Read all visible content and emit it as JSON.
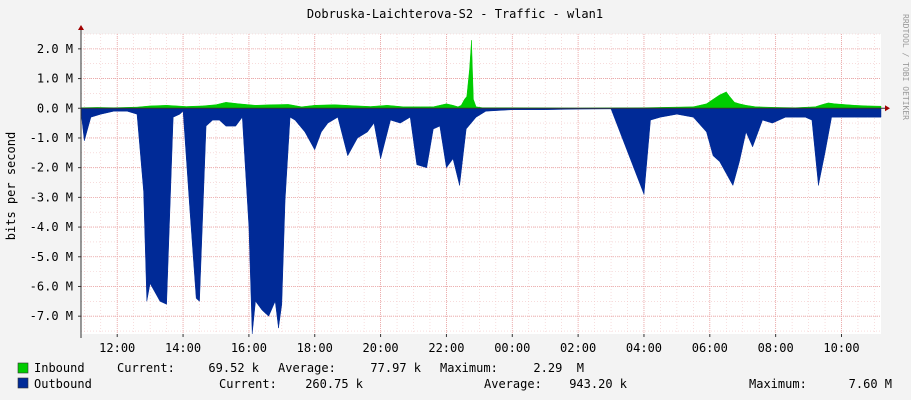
{
  "chart_data": {
    "type": "area",
    "title": "Dobruska-Laichterova-S2 - Traffic - wlan1",
    "ylabel": "bits per second",
    "xlabel": "",
    "watermark": "RRDTOOL / TOBI OETIKER",
    "ylim": [
      -7.6,
      2.5
    ],
    "y_unit": "M",
    "y_ticks": [
      {
        "v": 2,
        "label": "2.0 M"
      },
      {
        "v": 1,
        "label": "1.0 M"
      },
      {
        "v": 0,
        "label": "0.0 M"
      },
      {
        "v": -1,
        "label": "-1.0 M"
      },
      {
        "v": -2,
        "label": "-2.0 M"
      },
      {
        "v": -3,
        "label": "-3.0 M"
      },
      {
        "v": -4,
        "label": "-4.0 M"
      },
      {
        "v": -5,
        "label": "-5.0 M"
      },
      {
        "v": -6,
        "label": "-6.0 M"
      },
      {
        "v": -7,
        "label": "-7.0 M"
      }
    ],
    "x_ticks": [
      "12:00",
      "14:00",
      "16:00",
      "18:00",
      "20:00",
      "22:00",
      "00:00",
      "02:00",
      "04:00",
      "06:00",
      "08:00",
      "10:00"
    ],
    "x_tick_hours": [
      12,
      14,
      16,
      18,
      20,
      22,
      24,
      26,
      28,
      30,
      32,
      34
    ],
    "x_range_hours": [
      10.9,
      35.2
    ],
    "grid": true,
    "colors": {
      "inbound": "#00cc00",
      "outbound": "#002a97",
      "grid_major": "#e8a0a0",
      "grid_minor": "#f2c8c8",
      "axis": "#333333",
      "arrow": "#a00000",
      "background": "#ffffff"
    },
    "series": [
      {
        "name": "Inbound",
        "color": "#00cc00",
        "x": [
          10.9,
          11.4,
          11.9,
          12.6,
          13.0,
          13.5,
          14.1,
          14.6,
          15.0,
          15.3,
          15.7,
          16.2,
          16.7,
          17.2,
          17.6,
          18.0,
          18.6,
          19.3,
          19.7,
          20.2,
          20.7,
          21.2,
          21.6,
          22.0,
          22.2,
          22.35,
          22.45,
          22.55,
          22.62,
          22.7,
          22.76,
          22.82,
          22.9,
          23.1,
          24.0,
          26.0,
          28.0,
          29.5,
          29.9,
          30.1,
          30.3,
          30.5,
          30.6,
          30.75,
          30.9,
          31.1,
          31.4,
          32.0,
          32.6,
          33.2,
          33.4,
          33.6,
          33.8,
          34.4,
          34.8,
          35.2
        ],
        "values": [
          0.02,
          0.03,
          0.02,
          0.04,
          0.08,
          0.1,
          0.06,
          0.08,
          0.12,
          0.2,
          0.15,
          0.1,
          0.12,
          0.13,
          0.05,
          0.1,
          0.12,
          0.08,
          0.06,
          0.1,
          0.05,
          0.05,
          0.05,
          0.15,
          0.1,
          0.05,
          0.1,
          0.3,
          0.4,
          1.3,
          2.29,
          0.3,
          0.05,
          0.02,
          0.02,
          0.01,
          0.02,
          0.05,
          0.15,
          0.3,
          0.45,
          0.55,
          0.4,
          0.2,
          0.15,
          0.1,
          0.05,
          0.03,
          0.02,
          0.05,
          0.12,
          0.18,
          0.15,
          0.1,
          0.08,
          0.07
        ]
      },
      {
        "name": "Outbound",
        "color": "#002a97",
        "x": [
          10.9,
          11.0,
          11.2,
          11.5,
          11.9,
          12.3,
          12.6,
          12.8,
          12.9,
          13.0,
          13.3,
          13.5,
          13.7,
          13.9,
          14.0,
          14.2,
          14.4,
          14.5,
          14.7,
          14.9,
          15.1,
          15.3,
          15.6,
          15.8,
          16.0,
          16.1,
          16.2,
          16.4,
          16.6,
          16.8,
          16.9,
          17.0,
          17.1,
          17.25,
          17.4,
          17.7,
          18.0,
          18.2,
          18.4,
          18.7,
          19.0,
          19.3,
          19.6,
          19.8,
          20.0,
          20.3,
          20.6,
          20.9,
          21.1,
          21.4,
          21.6,
          21.8,
          22.0,
          22.2,
          22.4,
          22.6,
          22.9,
          23.2,
          24.0,
          25.0,
          26.0,
          27.0,
          28.0,
          28.2,
          28.5,
          29.0,
          29.5,
          29.9,
          30.1,
          30.3,
          30.5,
          30.7,
          30.9,
          31.1,
          31.3,
          31.6,
          31.9,
          32.3,
          32.6,
          32.9,
          33.1,
          33.3,
          33.5,
          33.7,
          34.0,
          34.4,
          34.8,
          35.2
        ],
        "values": [
          -0.1,
          -1.1,
          -0.3,
          -0.2,
          -0.1,
          -0.1,
          -0.2,
          -2.8,
          -6.5,
          -5.9,
          -6.5,
          -6.6,
          -0.3,
          -0.2,
          -0.1,
          -3.3,
          -6.4,
          -6.5,
          -0.6,
          -0.4,
          -0.4,
          -0.6,
          -0.6,
          -0.3,
          -4.0,
          -7.6,
          -6.5,
          -6.8,
          -7.0,
          -6.5,
          -7.4,
          -6.6,
          -3.1,
          -0.3,
          -0.4,
          -0.8,
          -1.4,
          -0.8,
          -0.5,
          -0.3,
          -1.6,
          -1.0,
          -0.8,
          -0.5,
          -1.7,
          -0.4,
          -0.5,
          -0.3,
          -1.9,
          -2.0,
          -0.7,
          -0.6,
          -2.0,
          -1.7,
          -2.6,
          -0.7,
          -0.3,
          -0.1,
          -0.05,
          -0.05,
          -0.03,
          -0.02,
          -2.9,
          -0.4,
          -0.3,
          -0.2,
          -0.3,
          -0.8,
          -1.6,
          -1.8,
          -2.2,
          -2.6,
          -1.8,
          -0.8,
          -1.3,
          -0.4,
          -0.5,
          -0.3,
          -0.3,
          -0.3,
          -0.4,
          -2.6,
          -1.5,
          -0.3,
          -0.3,
          -0.3,
          -0.3,
          -0.3
        ]
      }
    ],
    "legend": {
      "rows": [
        {
          "name": "Inbound",
          "current_label": "Current:",
          "current": "69.52 k",
          "average_label": "Average:",
          "average": "77.97 k",
          "maximum_label": "Maximum:",
          "maximum": "2.29  M"
        },
        {
          "name": "Outbound",
          "current_label": "Current:",
          "current": "260.75 k",
          "average_label": "Average:",
          "average": "943.20 k",
          "maximum_label": "Maximum:",
          "maximum": "7.60 M"
        }
      ]
    }
  }
}
